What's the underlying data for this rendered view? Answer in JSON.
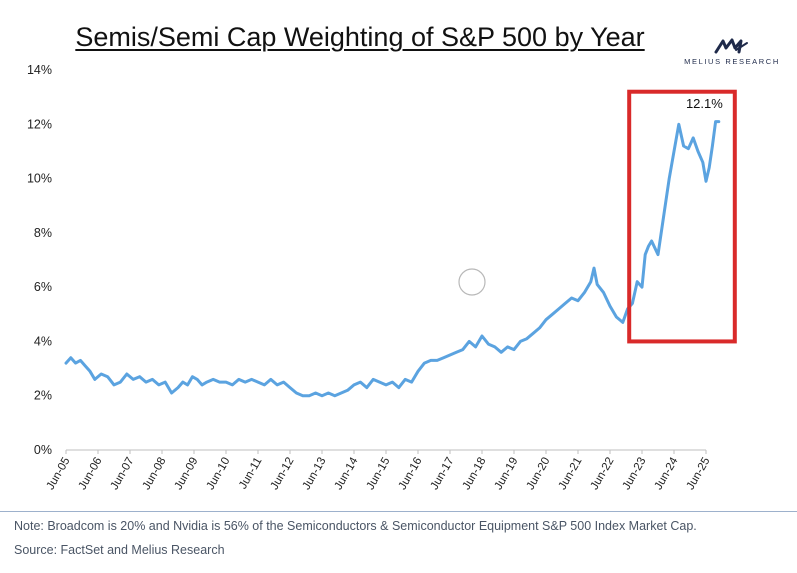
{
  "header": {
    "title": "Semis/Semi Cap Weighting of S&P 500 by Year",
    "brand_name": "MELIUS RESEARCH"
  },
  "chart_data": {
    "type": "line",
    "title": "Semis/Semi Cap Weighting of S&P 500 by Year",
    "xlabel": "",
    "ylabel": "",
    "x_ticks": [
      "Jun-05",
      "Jun-06",
      "Jun-07",
      "Jun-08",
      "Jun-09",
      "Jun-10",
      "Jun-11",
      "Jun-12",
      "Jun-13",
      "Jun-14",
      "Jun-15",
      "Jun-16",
      "Jun-17",
      "Jun-18",
      "Jun-19",
      "Jun-20",
      "Jun-21",
      "Jun-22",
      "Jun-23",
      "Jun-24",
      "Jun-25"
    ],
    "y_ticks": [
      "0%",
      "2%",
      "4%",
      "6%",
      "8%",
      "10%",
      "12%",
      "14%"
    ],
    "ylim": [
      0,
      14
    ],
    "xlim": [
      2005.0,
      2025.0
    ],
    "grid": false,
    "series": [
      {
        "name": "Semis/Semi Cap weighting of S&P 500",
        "color": "#5ba3e0",
        "x": [
          2005.0,
          2005.15,
          2005.3,
          2005.45,
          2005.6,
          2005.75,
          2005.9,
          2006.1,
          2006.3,
          2006.5,
          2006.7,
          2006.9,
          2007.1,
          2007.3,
          2007.5,
          2007.7,
          2007.9,
          2008.1,
          2008.3,
          2008.5,
          2008.65,
          2008.8,
          2008.95,
          2009.1,
          2009.25,
          2009.4,
          2009.6,
          2009.8,
          2010.0,
          2010.2,
          2010.4,
          2010.6,
          2010.8,
          2011.0,
          2011.2,
          2011.4,
          2011.6,
          2011.8,
          2012.0,
          2012.2,
          2012.4,
          2012.6,
          2012.8,
          2013.0,
          2013.2,
          2013.4,
          2013.6,
          2013.8,
          2014.0,
          2014.2,
          2014.4,
          2014.6,
          2014.8,
          2015.0,
          2015.2,
          2015.4,
          2015.6,
          2015.8,
          2016.0,
          2016.2,
          2016.4,
          2016.6,
          2016.8,
          2017.0,
          2017.2,
          2017.4,
          2017.6,
          2017.8,
          2018.0,
          2018.2,
          2018.4,
          2018.6,
          2018.8,
          2019.0,
          2019.2,
          2019.4,
          2019.6,
          2019.8,
          2020.0,
          2020.2,
          2020.4,
          2020.6,
          2020.8,
          2021.0,
          2021.2,
          2021.4,
          2021.5,
          2021.6,
          2021.8,
          2022.0,
          2022.2,
          2022.4,
          2022.55,
          2022.7,
          2022.85,
          2023.0,
          2023.1,
          2023.2,
          2023.3,
          2023.5,
          2023.7,
          2023.85,
          2024.0,
          2024.15,
          2024.3,
          2024.45,
          2024.6,
          2024.75,
          2024.9,
          2025.0,
          2025.1,
          2025.2,
          2025.3,
          2025.4
        ],
        "values": [
          3.2,
          3.4,
          3.2,
          3.3,
          3.1,
          2.9,
          2.6,
          2.8,
          2.7,
          2.4,
          2.5,
          2.8,
          2.6,
          2.7,
          2.5,
          2.6,
          2.4,
          2.5,
          2.1,
          2.3,
          2.5,
          2.4,
          2.7,
          2.6,
          2.4,
          2.5,
          2.6,
          2.5,
          2.5,
          2.4,
          2.6,
          2.5,
          2.6,
          2.5,
          2.4,
          2.6,
          2.4,
          2.5,
          2.3,
          2.1,
          2.0,
          2.0,
          2.1,
          2.0,
          2.1,
          2.0,
          2.1,
          2.2,
          2.4,
          2.5,
          2.3,
          2.6,
          2.5,
          2.4,
          2.5,
          2.3,
          2.6,
          2.5,
          2.9,
          3.2,
          3.3,
          3.3,
          3.4,
          3.5,
          3.6,
          3.7,
          4.0,
          3.8,
          4.2,
          3.9,
          3.8,
          3.6,
          3.8,
          3.7,
          4.0,
          4.1,
          4.3,
          4.5,
          4.8,
          5.0,
          5.2,
          5.4,
          5.6,
          5.5,
          5.8,
          6.2,
          6.7,
          6.1,
          5.8,
          5.3,
          4.9,
          4.7,
          5.2,
          5.4,
          6.2,
          6.0,
          7.2,
          7.5,
          7.7,
          7.2,
          8.8,
          10.0,
          11.0,
          12.0,
          11.2,
          11.1,
          11.5,
          11.0,
          10.6,
          9.9,
          10.4,
          11.2,
          12.1,
          12.1
        ]
      }
    ],
    "annotations": [
      {
        "text": "12.1%",
        "x": 2024.95,
        "y": 12.6
      },
      {
        "type": "highlight-box",
        "x_range": [
          2022.6,
          2025.9
        ],
        "y_range": [
          4.0,
          13.2
        ],
        "color": "#d92a2a"
      }
    ]
  },
  "footer": {
    "note": "Note: Broadcom is 20% and Nvidia is 56% of the Semiconductors & Semiconductor Equipment S&P 500 Index Market Cap.",
    "source": "Source: FactSet and Melius Research"
  }
}
